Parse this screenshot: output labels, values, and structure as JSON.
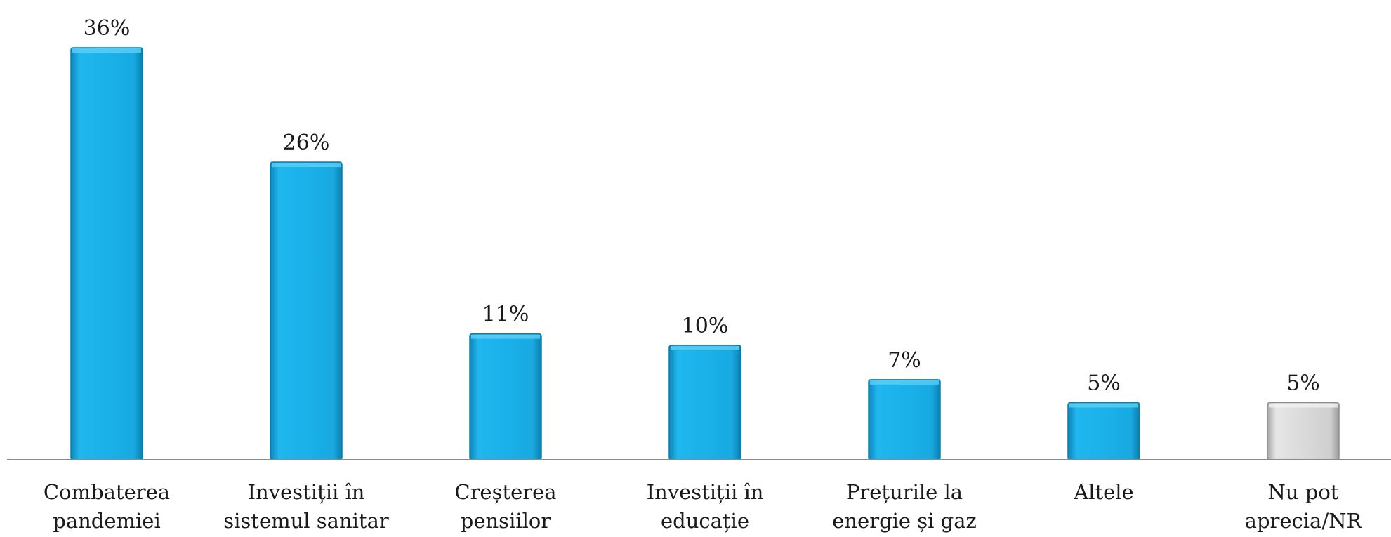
{
  "chart_data": {
    "type": "bar",
    "categories": [
      [
        "Combaterea",
        "pandemiei"
      ],
      [
        "Investiții în",
        "sistemul sanitar"
      ],
      [
        "Creșterea",
        "pensiilor"
      ],
      [
        "Investiții în",
        "educație"
      ],
      [
        "Prețurile la",
        "energie și gaz"
      ],
      [
        "Altele"
      ],
      [
        "Nu pot",
        "aprecia/NR"
      ]
    ],
    "values": [
      36,
      26,
      11,
      10,
      7,
      5,
      5
    ],
    "value_labels": [
      "36%",
      "26%",
      "11%",
      "10%",
      "7%",
      "5%",
      "5%"
    ],
    "ylim": [
      0,
      36
    ],
    "grid": false,
    "legend": "none",
    "colors": [
      "#1ab1ea",
      "#1ab1ea",
      "#1ab1ea",
      "#1ab1ea",
      "#1ab1ea",
      "#1ab1ea",
      "#d6d6d6"
    ],
    "axis_color": "#8a8a8a"
  }
}
